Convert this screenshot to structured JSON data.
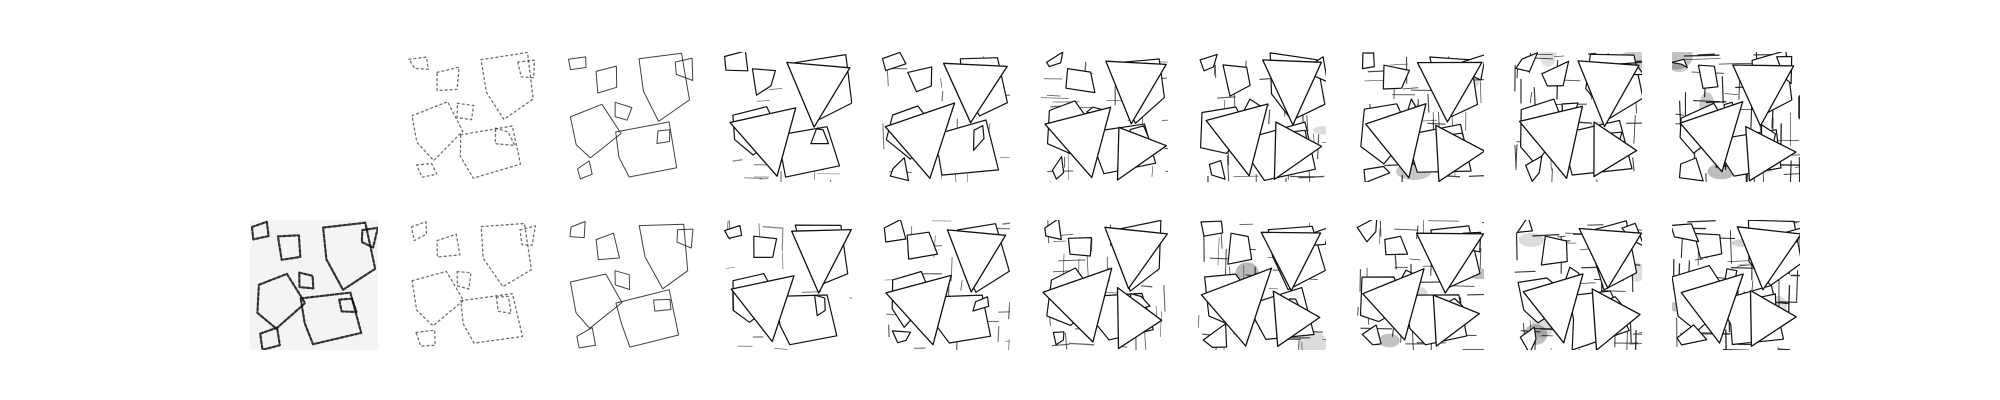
{
  "figure": {
    "background": "#ffffff",
    "ink": "#111111",
    "rows": [
      {
        "name": "row-top",
        "tiles": [
          {
            "present": false
          },
          {
            "stage": 1,
            "style": "faint-outline"
          },
          {
            "stage": 2,
            "style": "thin-outline"
          },
          {
            "stage": 3,
            "style": "filled-polygons"
          },
          {
            "stage": 4,
            "style": "filled-polygons"
          },
          {
            "stage": 5,
            "style": "filled-polygons"
          },
          {
            "stage": 6,
            "style": "filled-polygons"
          },
          {
            "stage": 7,
            "style": "filled-polygons"
          },
          {
            "stage": 8,
            "style": "filled-polygons"
          },
          {
            "stage": 9,
            "style": "filled-polygons"
          }
        ]
      },
      {
        "name": "row-bottom",
        "tiles": [
          {
            "stage": 0,
            "style": "dashed-outline"
          },
          {
            "stage": 1,
            "style": "faint-outline"
          },
          {
            "stage": 2,
            "style": "thin-outline"
          },
          {
            "stage": 3,
            "style": "filled-polygons"
          },
          {
            "stage": 4,
            "style": "filled-polygons"
          },
          {
            "stage": 5,
            "style": "filled-polygons"
          },
          {
            "stage": 6,
            "style": "filled-polygons"
          },
          {
            "stage": 7,
            "style": "filled-polygons"
          },
          {
            "stage": 8,
            "style": "filled-polygons"
          },
          {
            "stage": 9,
            "style": "filled-polygons"
          }
        ]
      }
    ]
  }
}
